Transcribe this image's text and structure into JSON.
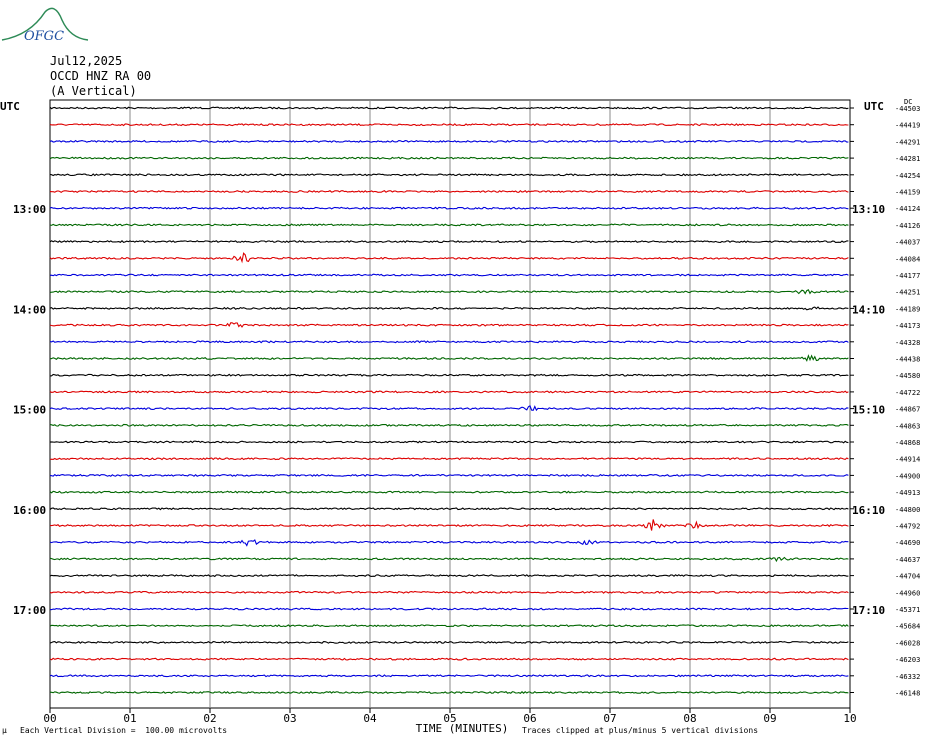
{
  "logo": {
    "text": "OFGC",
    "colors": {
      "arc": "#2e8b57",
      "text": "#1f4fa0"
    }
  },
  "header": {
    "date": "Jul12,2025",
    "station": "OCCD HNZ RA 00",
    "component": "(A Vertical)"
  },
  "chart_data": {
    "type": "line",
    "title": "Jul12,2025 OCCD HNZ RA 00 (A Vertical)",
    "xlabel": "TIME (MINUTES)",
    "xlim": [
      0,
      10
    ],
    "x_ticks": [
      "00",
      "01",
      "02",
      "03",
      "04",
      "05",
      "06",
      "07",
      "08",
      "09",
      "10"
    ],
    "left_axis_label": "UTC",
    "right_axis_label": "UTC",
    "right_top_label": "DC",
    "hour_labels_left": [
      {
        "label": "13:00",
        "trace": 6
      },
      {
        "label": "14:00",
        "trace": 12
      },
      {
        "label": "15:00",
        "trace": 18
      },
      {
        "label": "16:00",
        "trace": 24
      },
      {
        "label": "17:00",
        "trace": 30
      }
    ],
    "hour_labels_right": [
      {
        "label": "13:10",
        "trace": 6
      },
      {
        "label": "14:10",
        "trace": 12
      },
      {
        "label": "15:10",
        "trace": 18
      },
      {
        "label": "16:10",
        "trace": 24
      },
      {
        "label": "17:10",
        "trace": 30
      }
    ],
    "trace_colors": [
      "#000000",
      "#dd0000",
      "#0000dd",
      "#006600"
    ],
    "dc_offsets": [
      "-44503",
      "-44419",
      "-44291",
      "-44281",
      "-44254",
      "-44159",
      "-44124",
      "-44126",
      "-44037",
      "-44084",
      "-44177",
      "-44251",
      "-44189",
      "-44173",
      "-44328",
      "-44438",
      "-44580",
      "-44722",
      "-44867",
      "-44863",
      "-44868",
      "-44914",
      "-44900",
      "-44913",
      "-44800",
      "-44792",
      "-44690",
      "-44637",
      "-44704",
      "-44960",
      "-45371",
      "-45684",
      "-46028",
      "-46203",
      "-46332",
      "-46148"
    ],
    "events": [
      {
        "trace": 9,
        "x": 2.4,
        "amp": 6
      },
      {
        "trace": 11,
        "x": 9.45,
        "amp": 5
      },
      {
        "trace": 12,
        "x": 9.5,
        "amp": 4
      },
      {
        "trace": 13,
        "x": 2.3,
        "amp": 4
      },
      {
        "trace": 15,
        "x": 9.5,
        "amp": 5
      },
      {
        "trace": 18,
        "x": 6.0,
        "amp": 3
      },
      {
        "trace": 25,
        "x": 7.55,
        "amp": 7
      },
      {
        "trace": 25,
        "x": 8.05,
        "amp": 4
      },
      {
        "trace": 26,
        "x": 2.5,
        "amp": 4
      },
      {
        "trace": 26,
        "x": 6.7,
        "amp": 4
      },
      {
        "trace": 27,
        "x": 9.1,
        "amp": 3
      }
    ]
  },
  "footer": {
    "division": "Each Vertical Division =  100.00 microvolts",
    "clipping": "Traces clipped at plus/minus 5 vertical divisions",
    "corner": "μ"
  }
}
